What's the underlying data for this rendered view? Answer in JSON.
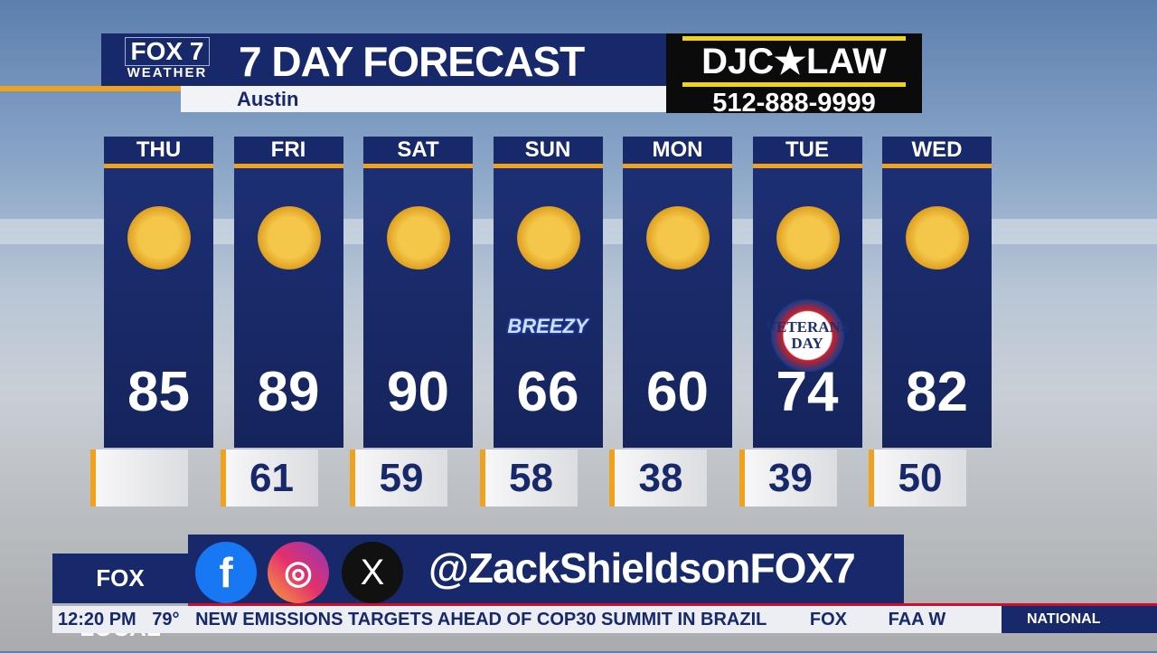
{
  "header": {
    "logo_top": "FOX 7",
    "logo_bottom": "WEATHER",
    "title": "7 DAY FORECAST",
    "location": "Austin"
  },
  "sponsor": {
    "name": "DJC★LAW",
    "phone": "512-888-9999"
  },
  "days": [
    {
      "day": "THU",
      "icon": "sun-icon",
      "high": "85",
      "low": ""
    },
    {
      "day": "FRI",
      "icon": "sun-icon",
      "high": "89",
      "low": "61"
    },
    {
      "day": "SAT",
      "icon": "sun-icon",
      "high": "90",
      "low": "59"
    },
    {
      "day": "SUN",
      "icon": "sun-icon",
      "high": "66",
      "low": "58",
      "tag": "BREEZY"
    },
    {
      "day": "MON",
      "icon": "sun-icon",
      "high": "60",
      "low": "38"
    },
    {
      "day": "TUE",
      "icon": "sun-icon",
      "high": "74",
      "low": "39",
      "tag": "VETERANS DAY"
    },
    {
      "day": "WED",
      "icon": "sun-icon",
      "high": "82",
      "low": "50"
    }
  ],
  "social": {
    "handle": "@ZackShieldsonFOX7",
    "brand": "FOX LOCAL",
    "icons": [
      "facebook-icon",
      "instagram-icon",
      "x-icon"
    ]
  },
  "ticker": {
    "time": "12:20 PM",
    "temp": "79°",
    "headline": "NEW EMISSIONS TARGETS AHEAD OF COP30 SUMMIT IN BRAZIL",
    "sep": "FOX",
    "next": "FAA W",
    "section": "NATIONAL"
  },
  "colors": {
    "navy": "#17286b",
    "orange": "#f0a21c",
    "sun": "#f4c74a",
    "red": "#c8102e"
  }
}
